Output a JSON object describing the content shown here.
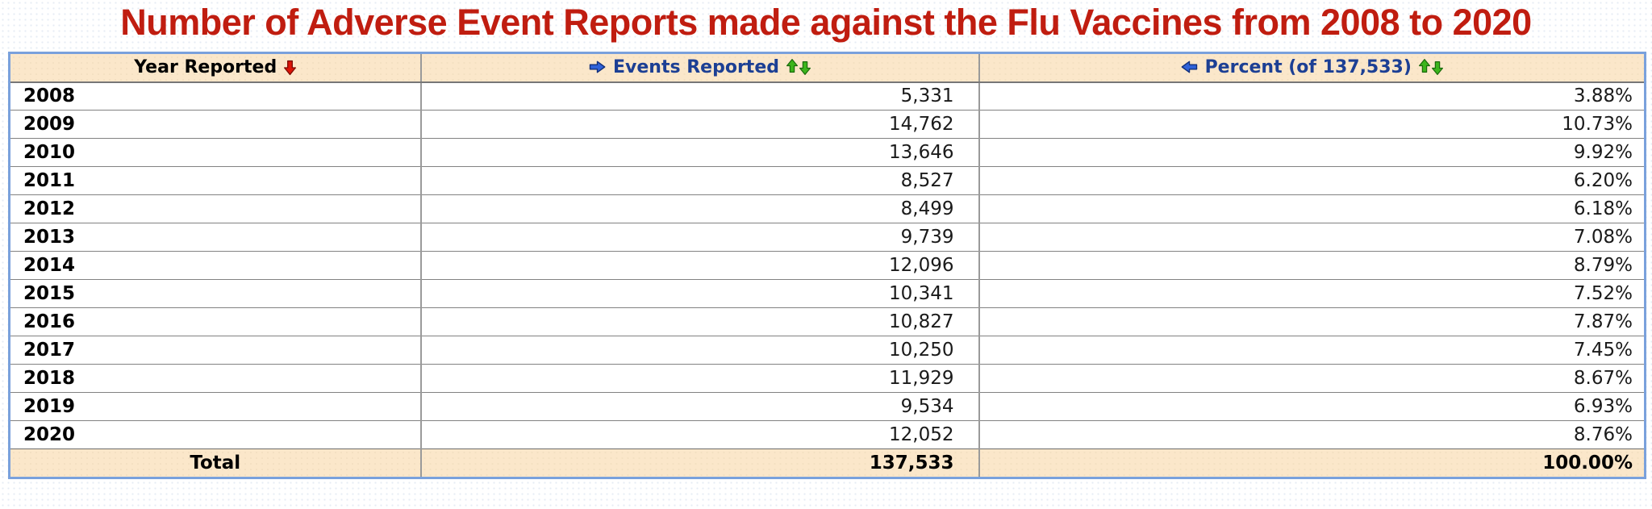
{
  "title": "Number of Adverse Event Reports made against the Flu Vaccines from 2008 to 2020",
  "colors": {
    "title_red": "#c01d10",
    "header_text_blue": "#1c3f94",
    "header_background": "#fbe7ca",
    "table_border_blue": "#7aa1dc",
    "grid_gray": "#828282",
    "arrow_red": "#dd1407",
    "arrow_green": "#3cb51d",
    "arrow_blue": "#2f62d9"
  },
  "table": {
    "columns": [
      {
        "label": "Year Reported",
        "icon_after": "red-down-arrow-icon"
      },
      {
        "label": "Events Reported",
        "icon_before": "blue-right-arrow-icon",
        "icon_after": "green-up-down-arrows-icon"
      },
      {
        "label": "Percent (of 137,533)",
        "icon_before": "blue-left-arrow-icon",
        "icon_after": "green-up-down-arrows-icon"
      }
    ],
    "rows": [
      {
        "year": "2008",
        "events": "5,331",
        "percent": "3.88%"
      },
      {
        "year": "2009",
        "events": "14,762",
        "percent": "10.73%"
      },
      {
        "year": "2010",
        "events": "13,646",
        "percent": "9.92%"
      },
      {
        "year": "2011",
        "events": "8,527",
        "percent": "6.20%"
      },
      {
        "year": "2012",
        "events": "8,499",
        "percent": "6.18%"
      },
      {
        "year": "2013",
        "events": "9,739",
        "percent": "7.08%"
      },
      {
        "year": "2014",
        "events": "12,096",
        "percent": "8.79%"
      },
      {
        "year": "2015",
        "events": "10,341",
        "percent": "7.52%"
      },
      {
        "year": "2016",
        "events": "10,827",
        "percent": "7.87%"
      },
      {
        "year": "2017",
        "events": "10,250",
        "percent": "7.45%"
      },
      {
        "year": "2018",
        "events": "11,929",
        "percent": "8.67%"
      },
      {
        "year": "2019",
        "events": "9,534",
        "percent": "6.93%"
      },
      {
        "year": "2020",
        "events": "12,052",
        "percent": "8.76%"
      }
    ],
    "total": {
      "label": "Total",
      "events": "137,533",
      "percent": "100.00%"
    }
  }
}
